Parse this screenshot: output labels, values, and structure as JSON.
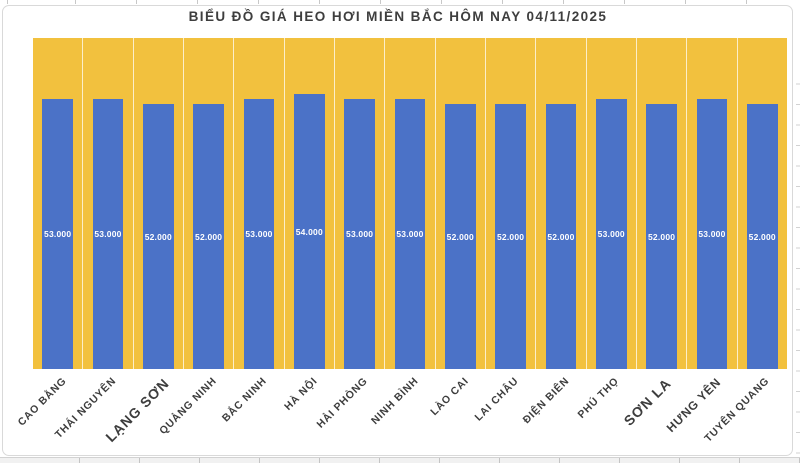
{
  "chart_data": {
    "type": "bar",
    "title": "BIỂU ĐỒ GIÁ HEO HƠI MIỀN BẮC HÔM NAY 04/11/2025",
    "categories": [
      "CAO BẰNG",
      "THÁI NGUYÊN",
      "LẠNG SƠN",
      "QUẢNG NINH",
      "BẮC NINH",
      "HÀ NỘI",
      "HẢI PHÒNG",
      "NINH BÌNH",
      "LÀO CAI",
      "LAI CHÂU",
      "ĐIỆN BIÊN",
      "PHÚ THỌ",
      "SƠN LA",
      "HƯNG YÊN",
      "TUYÊN QUANG"
    ],
    "values": [
      53000,
      53000,
      52000,
      52000,
      53000,
      54000,
      53000,
      53000,
      52000,
      52000,
      52000,
      53000,
      52000,
      53000,
      52000
    ],
    "value_labels": [
      "53.000",
      "53.000",
      "52.000",
      "52.000",
      "53.000",
      "54.000",
      "53.000",
      "53.000",
      "52.000",
      "52.000",
      "52.000",
      "53.000",
      "52.000",
      "53.000",
      "52.000"
    ],
    "xlabel": "",
    "ylabel": "",
    "ylim": [
      0,
      65000
    ],
    "y_axis_visible": false,
    "grid": "vertical category separators only",
    "legend_position": "none",
    "data_label_position": "inside center",
    "colors": {
      "bar": "#4B72C7",
      "plot_background": "#F2C13E",
      "value_label": "#FFFFFF",
      "title_text": "#3E3E3E",
      "axis_label_text": "#3D3D3D"
    }
  }
}
